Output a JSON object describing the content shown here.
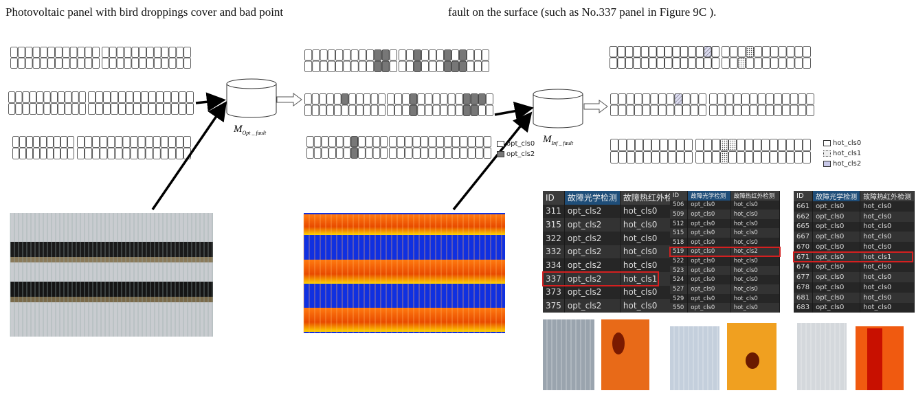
{
  "caption": {
    "left": "Photovoltaic panel with bird droppings cover and bad point",
    "right": "fault on the surface (such as No.337 panel in Figure 9C )."
  },
  "models": [
    {
      "base": "M",
      "sub": "Opt _ fault"
    },
    {
      "base": "M",
      "sub": "Inf _ fault"
    }
  ],
  "legend_opt": [
    "opt_cls0",
    "opt_cls2"
  ],
  "legend_hot": [
    "hot_cls0",
    "hot_cls1",
    "hot_cls2"
  ],
  "tables": [
    {
      "header": [
        "ID",
        "故障光学检测",
        "故障热红外检测"
      ],
      "highlight": 5,
      "rows": [
        [
          "311",
          "opt_cls2",
          "hot_cls0"
        ],
        [
          "315",
          "opt_cls2",
          "hot_cls0"
        ],
        [
          "322",
          "opt_cls2",
          "hot_cls0"
        ],
        [
          "332",
          "opt_cls2",
          "hot_cls0"
        ],
        [
          "334",
          "opt_cls2",
          "hot_cls0"
        ],
        [
          "337",
          "opt_cls2",
          "hot_cls1"
        ],
        [
          "373",
          "opt_cls2",
          "hot_cls0"
        ],
        [
          "375",
          "opt_cls2",
          "hot_cls0"
        ]
      ]
    },
    {
      "header": [
        "ID",
        "故障光学检测",
        "故障热红外检测"
      ],
      "highlight": 5,
      "rows": [
        [
          "506",
          "opt_cls0",
          "hot_cls0"
        ],
        [
          "509",
          "opt_cls0",
          "hot_cls0"
        ],
        [
          "512",
          "opt_cls0",
          "hot_cls0"
        ],
        [
          "515",
          "opt_cls0",
          "hot_cls0"
        ],
        [
          "518",
          "opt_cls0",
          "hot_cls0"
        ],
        [
          "519",
          "opt_cls0",
          "hot_cls2"
        ],
        [
          "522",
          "opt_cls0",
          "hot_cls0"
        ],
        [
          "523",
          "opt_cls0",
          "hot_cls0"
        ],
        [
          "524",
          "opt_cls0",
          "hot_cls0"
        ],
        [
          "527",
          "opt_cls0",
          "hot_cls0"
        ],
        [
          "529",
          "opt_cls0",
          "hot_cls0"
        ],
        [
          "550",
          "opt_cls0",
          "hot_cls0"
        ]
      ]
    },
    {
      "header": [
        "ID",
        "故障光学检测",
        "故障热红外检测"
      ],
      "highlight": 5,
      "rows": [
        [
          "661",
          "opt_cls0",
          "hot_cls0"
        ],
        [
          "662",
          "opt_cls0",
          "hot_cls0"
        ],
        [
          "665",
          "opt_cls0",
          "hot_cls0"
        ],
        [
          "667",
          "opt_cls0",
          "hot_cls0"
        ],
        [
          "670",
          "opt_cls0",
          "hot_cls0"
        ],
        [
          "671",
          "opt_cls0",
          "hot_cls1"
        ],
        [
          "674",
          "opt_cls0",
          "hot_cls0"
        ],
        [
          "677",
          "opt_cls0",
          "hot_cls0"
        ],
        [
          "678",
          "opt_cls0",
          "hot_cls0"
        ],
        [
          "681",
          "opt_cls0",
          "hot_cls0"
        ],
        [
          "683",
          "opt_cls0",
          "hot_cls0"
        ]
      ]
    }
  ]
}
